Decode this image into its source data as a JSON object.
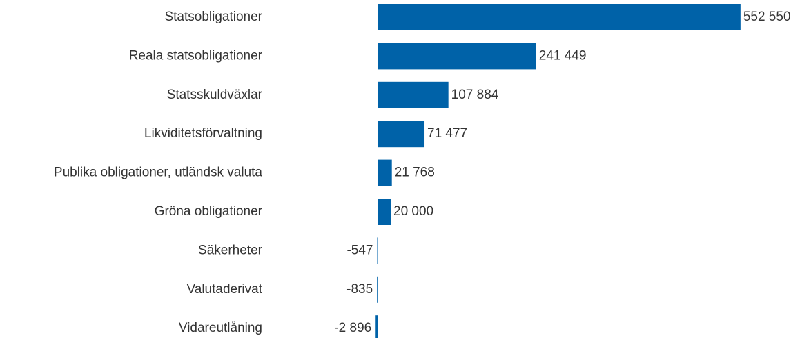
{
  "chart_data": {
    "type": "bar",
    "orientation": "horizontal",
    "categories": [
      "Statsobligationer",
      "Reala statsobligationer",
      "Statsskuldväxlar",
      "Likviditetsförvaltning",
      "Publika obligationer, utländsk valuta",
      "Gröna obligationer",
      "Säkerheter",
      "Valutaderivat",
      "Vidareutlåning"
    ],
    "values": [
      552550,
      241449,
      107884,
      71477,
      21768,
      20000,
      -547,
      -835,
      -2896
    ],
    "value_labels": [
      "552 550",
      "241 449",
      "107 884",
      "71 477",
      "21 768",
      "20 000",
      "-547",
      "-835",
      "-2 896"
    ],
    "color": "#0062a8",
    "xlim": [
      -27000,
      600000
    ]
  }
}
